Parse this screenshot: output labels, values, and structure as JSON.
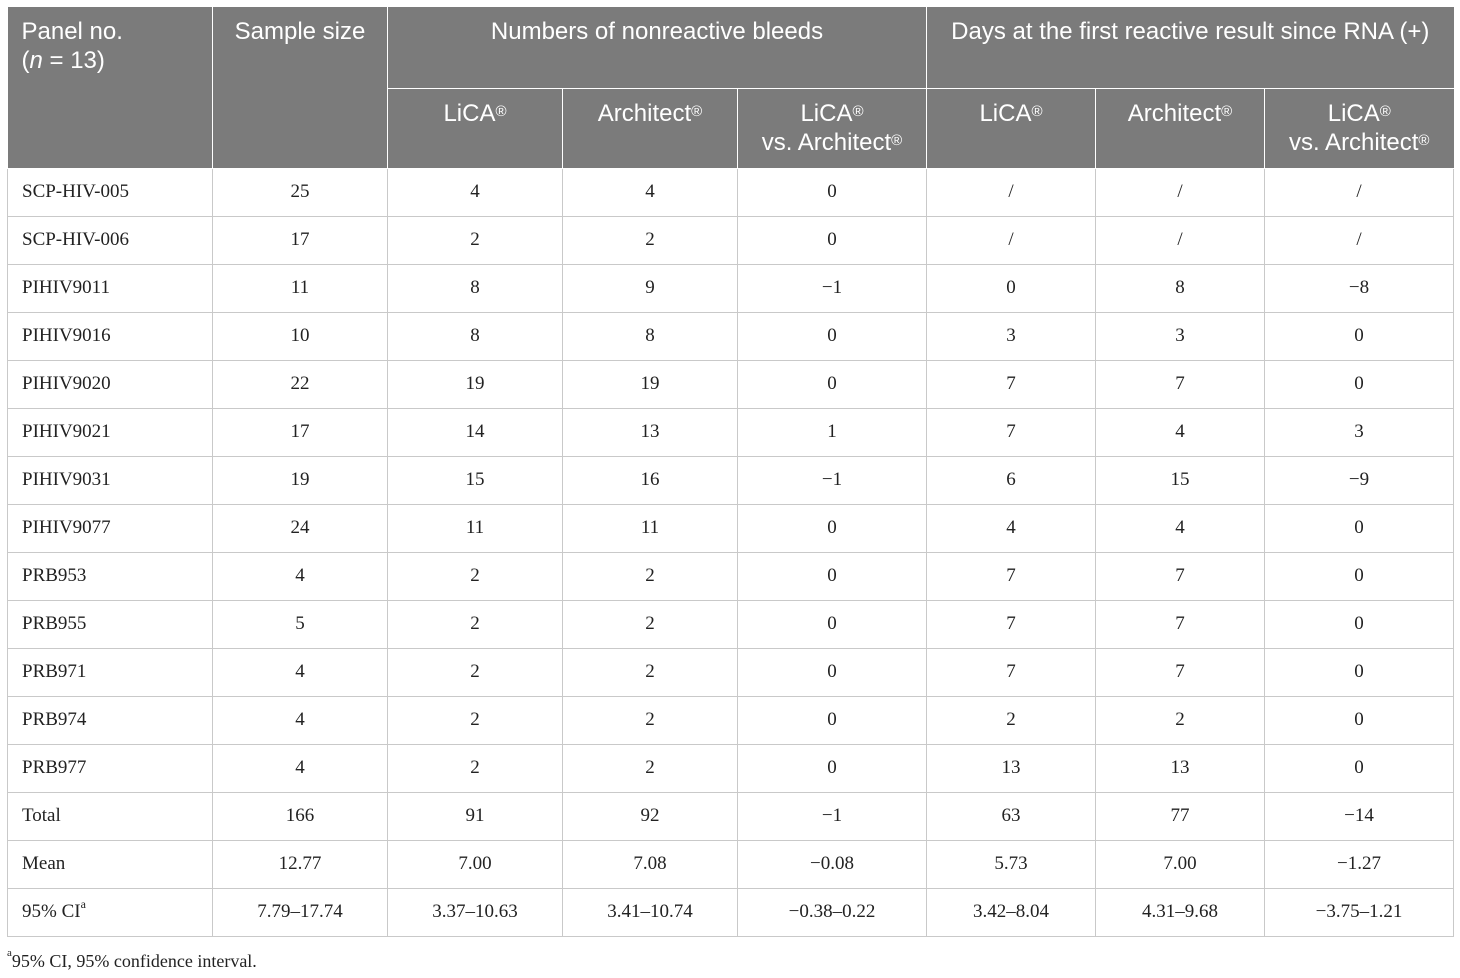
{
  "header": {
    "panel_no_line1": "Panel no.",
    "panel_no_n": "n",
    "panel_no_rest": " = 13)",
    "sample_size": "Sample size",
    "group_nonreactive": "Numbers of nonreactive bleeds",
    "group_days": "Days at the first reactive result since RNA (+)",
    "lica": "LiCA",
    "architect": "Architect",
    "vs_line1": "LiCA",
    "vs_line2": "vs. Architect",
    "reg": "®"
  },
  "rows": [
    {
      "panel": "SCP-HIV-005",
      "sample": "25",
      "nr_lica": "4",
      "nr_arch": "4",
      "nr_diff": "0",
      "d_lica": "/",
      "d_arch": "/",
      "d_diff": "/"
    },
    {
      "panel": "SCP-HIV-006",
      "sample": "17",
      "nr_lica": "2",
      "nr_arch": "2",
      "nr_diff": "0",
      "d_lica": "/",
      "d_arch": "/",
      "d_diff": "/"
    },
    {
      "panel": "PIHIV9011",
      "sample": "11",
      "nr_lica": "8",
      "nr_arch": "9",
      "nr_diff": "−1",
      "d_lica": "0",
      "d_arch": "8",
      "d_diff": "−8"
    },
    {
      "panel": "PIHIV9016",
      "sample": "10",
      "nr_lica": "8",
      "nr_arch": "8",
      "nr_diff": "0",
      "d_lica": "3",
      "d_arch": "3",
      "d_diff": "0"
    },
    {
      "panel": "PIHIV9020",
      "sample": "22",
      "nr_lica": "19",
      "nr_arch": "19",
      "nr_diff": "0",
      "d_lica": "7",
      "d_arch": "7",
      "d_diff": "0"
    },
    {
      "panel": "PIHIV9021",
      "sample": "17",
      "nr_lica": "14",
      "nr_arch": "13",
      "nr_diff": "1",
      "d_lica": "7",
      "d_arch": "4",
      "d_diff": "3"
    },
    {
      "panel": "PIHIV9031",
      "sample": "19",
      "nr_lica": "15",
      "nr_arch": "16",
      "nr_diff": "−1",
      "d_lica": "6",
      "d_arch": "15",
      "d_diff": "−9"
    },
    {
      "panel": "PIHIV9077",
      "sample": "24",
      "nr_lica": "11",
      "nr_arch": "11",
      "nr_diff": "0",
      "d_lica": "4",
      "d_arch": "4",
      "d_diff": "0"
    },
    {
      "panel": "PRB953",
      "sample": "4",
      "nr_lica": "2",
      "nr_arch": "2",
      "nr_diff": "0",
      "d_lica": "7",
      "d_arch": "7",
      "d_diff": "0"
    },
    {
      "panel": "PRB955",
      "sample": "5",
      "nr_lica": "2",
      "nr_arch": "2",
      "nr_diff": "0",
      "d_lica": "7",
      "d_arch": "7",
      "d_diff": "0"
    },
    {
      "panel": "PRB971",
      "sample": "4",
      "nr_lica": "2",
      "nr_arch": "2",
      "nr_diff": "0",
      "d_lica": "7",
      "d_arch": "7",
      "d_diff": "0"
    },
    {
      "panel": "PRB974",
      "sample": "4",
      "nr_lica": "2",
      "nr_arch": "2",
      "nr_diff": "0",
      "d_lica": "2",
      "d_arch": "2",
      "d_diff": "0"
    },
    {
      "panel": "PRB977",
      "sample": "4",
      "nr_lica": "2",
      "nr_arch": "2",
      "nr_diff": "0",
      "d_lica": "13",
      "d_arch": "13",
      "d_diff": "0"
    },
    {
      "panel": "Total",
      "sample": "166",
      "nr_lica": "91",
      "nr_arch": "92",
      "nr_diff": "−1",
      "d_lica": "63",
      "d_arch": "77",
      "d_diff": "−14"
    },
    {
      "panel": "Mean",
      "sample": "12.77",
      "nr_lica": "7.00",
      "nr_arch": "7.08",
      "nr_diff": "−0.08",
      "d_lica": "5.73",
      "d_arch": "7.00",
      "d_diff": "−1.27"
    }
  ],
  "ci_row": {
    "panel": "95% CI",
    "panel_sup": "a",
    "sample": "7.79–17.74",
    "nr_lica": "3.37–10.63",
    "nr_arch": "3.41–10.74",
    "nr_diff": "−0.38–0.22",
    "d_lica": "3.42–8.04",
    "d_arch": "4.31–9.68",
    "d_diff": "−3.75–1.21"
  },
  "footnote": {
    "sup": "a",
    "text": "95% CI, 95% confidence interval."
  }
}
